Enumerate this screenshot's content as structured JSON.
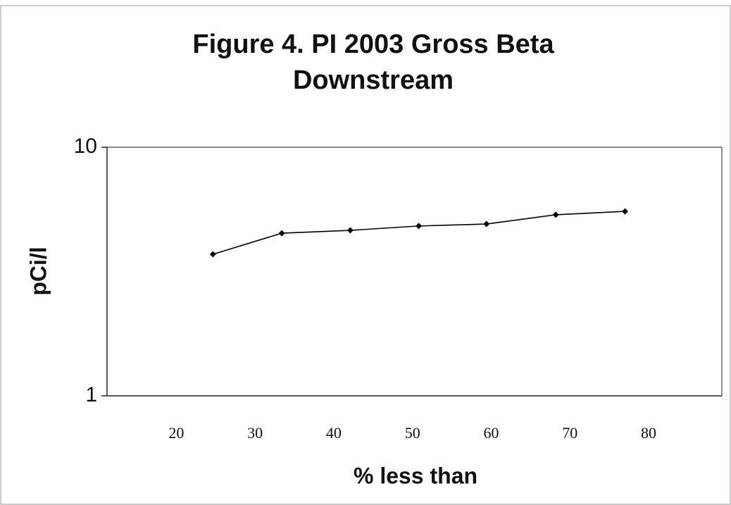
{
  "chart_data": {
    "type": "line",
    "title": "Figure 4. PI 2003 Gross Beta Downstream",
    "x_label": "% less than",
    "y_label": "pCi/l",
    "x": [
      24.65,
      33.4,
      42.1,
      50.8,
      59.4,
      68.2,
      77.0
    ],
    "series": [
      {
        "name": "Gross Beta",
        "color": "#000000",
        "values": [
          3.71,
          4.51,
          4.63,
          4.82,
          4.91,
          5.35,
          5.52
        ]
      }
    ],
    "xlim": [
      11.2,
      89.3
    ],
    "xticks": [
      20,
      30,
      40,
      50,
      60,
      70,
      80
    ],
    "ylim": [
      1,
      10
    ],
    "yticks": [
      1,
      10
    ],
    "y_scale": "log",
    "grid": false
  }
}
